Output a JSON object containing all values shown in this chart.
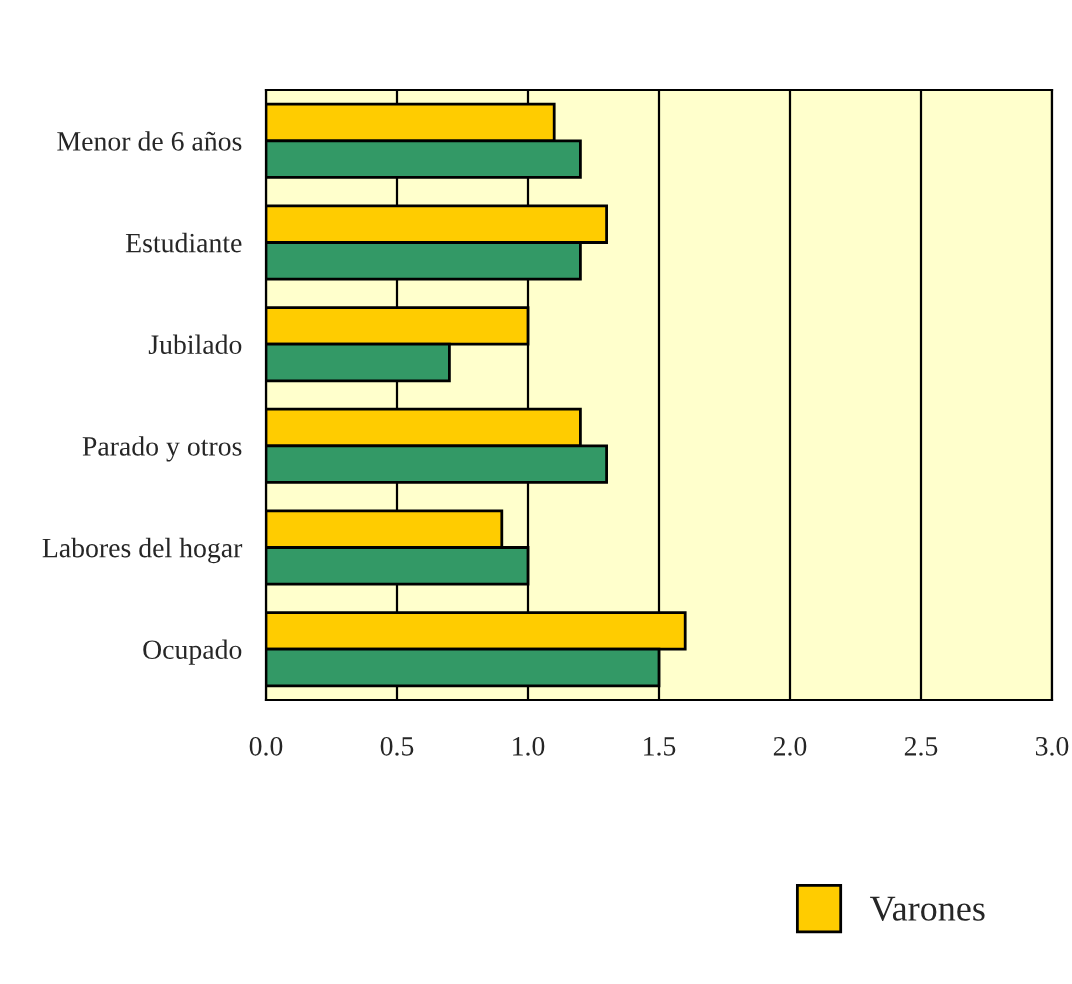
{
  "chart_data": {
    "type": "bar",
    "orientation": "horizontal",
    "categories": [
      "Menor de 6 años",
      "Estudiante",
      "Jubilado",
      "Parado y otros",
      "Labores del hogar",
      "Ocupado"
    ],
    "series": [
      {
        "name": "Varones",
        "color": "#ffcc00",
        "values": [
          1.1,
          1.3,
          1.0,
          1.2,
          0.9,
          1.6
        ]
      },
      {
        "color": "#339966",
        "values": [
          1.2,
          1.2,
          0.7,
          1.3,
          1.0,
          1.5
        ]
      }
    ],
    "xlim": [
      0,
      3
    ],
    "xticks": [
      {
        "value": 0,
        "label": "0.0"
      },
      {
        "value": 0.5,
        "label": "0.5"
      },
      {
        "value": 1,
        "label": "1.0"
      },
      {
        "value": 1.5,
        "label": "1.5"
      },
      {
        "value": 2,
        "label": "2.0"
      },
      {
        "value": 2.5,
        "label": "2.5"
      },
      {
        "value": 3,
        "label": "3.0"
      }
    ],
    "grid": "x",
    "legend": "bottom right"
  }
}
